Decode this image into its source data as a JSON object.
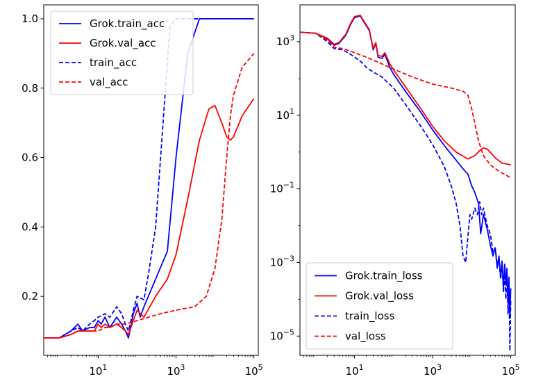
{
  "chart_data": [
    {
      "type": "line",
      "xscale": "log",
      "xlim": [
        0.4,
        130000
      ],
      "ylim": [
        0.03,
        1.04
      ],
      "xticks": [
        {
          "value": 10,
          "label": "10^1"
        },
        {
          "value": 1000,
          "label": "10^3"
        },
        {
          "value": 100000,
          "label": "10^5"
        }
      ],
      "yticks": [
        {
          "value": 0.2,
          "label": "0.2"
        },
        {
          "value": 0.4,
          "label": "0.4"
        },
        {
          "value": 0.6,
          "label": "0.6"
        },
        {
          "value": 0.8,
          "label": "0.8"
        },
        {
          "value": 1.0,
          "label": "1.0"
        }
      ],
      "legend_position": "top-left",
      "series": [
        {
          "name": "Grok.train_acc",
          "color": "#0000ff",
          "style": "solid",
          "points": [
            [
              0.4,
              0.08
            ],
            [
              1,
              0.08
            ],
            [
              2,
              0.1
            ],
            [
              3,
              0.12
            ],
            [
              4,
              0.1
            ],
            [
              6,
              0.11
            ],
            [
              8,
              0.11
            ],
            [
              10,
              0.13
            ],
            [
              12,
              0.12
            ],
            [
              15,
              0.14
            ],
            [
              20,
              0.11
            ],
            [
              30,
              0.14
            ],
            [
              40,
              0.12
            ],
            [
              50,
              0.1
            ],
            [
              60,
              0.08
            ],
            [
              80,
              0.15
            ],
            [
              100,
              0.18
            ],
            [
              120,
              0.14
            ],
            [
              150,
              0.17
            ],
            [
              300,
              0.25
            ],
            [
              600,
              0.33
            ],
            [
              1000,
              0.6
            ],
            [
              2000,
              0.9
            ],
            [
              4000,
              1.0
            ],
            [
              8000,
              1.0
            ],
            [
              100000,
              1.0
            ]
          ]
        },
        {
          "name": "Grok.val_acc",
          "color": "#ff0000",
          "style": "solid",
          "points": [
            [
              0.4,
              0.08
            ],
            [
              1,
              0.08
            ],
            [
              2,
              0.09
            ],
            [
              3,
              0.1
            ],
            [
              4,
              0.1
            ],
            [
              6,
              0.1
            ],
            [
              8,
              0.1
            ],
            [
              10,
              0.12
            ],
            [
              12,
              0.11
            ],
            [
              15,
              0.12
            ],
            [
              20,
              0.11
            ],
            [
              30,
              0.12
            ],
            [
              40,
              0.11
            ],
            [
              50,
              0.1
            ],
            [
              60,
              0.09
            ],
            [
              80,
              0.13
            ],
            [
              100,
              0.16
            ],
            [
              150,
              0.14
            ],
            [
              300,
              0.2
            ],
            [
              600,
              0.25
            ],
            [
              1000,
              0.32
            ],
            [
              2000,
              0.48
            ],
            [
              4000,
              0.65
            ],
            [
              7000,
              0.74
            ],
            [
              10000,
              0.75
            ],
            [
              15000,
              0.7
            ],
            [
              20000,
              0.66
            ],
            [
              25000,
              0.65
            ],
            [
              30000,
              0.66
            ],
            [
              50000,
              0.72
            ],
            [
              100000,
              0.77
            ]
          ]
        },
        {
          "name": "train_acc",
          "color": "#0000ff",
          "style": "dashed",
          "points": [
            [
              0.4,
              0.08
            ],
            [
              1,
              0.08
            ],
            [
              2,
              0.1
            ],
            [
              3,
              0.11
            ],
            [
              4,
              0.1
            ],
            [
              6,
              0.12
            ],
            [
              8,
              0.13
            ],
            [
              10,
              0.14
            ],
            [
              15,
              0.15
            ],
            [
              20,
              0.14
            ],
            [
              30,
              0.17
            ],
            [
              40,
              0.15
            ],
            [
              50,
              0.12
            ],
            [
              60,
              0.1
            ],
            [
              80,
              0.16
            ],
            [
              100,
              0.2
            ],
            [
              150,
              0.19
            ],
            [
              200,
              0.27
            ],
            [
              300,
              0.4
            ],
            [
              500,
              0.75
            ],
            [
              700,
              0.98
            ],
            [
              1000,
              1.0
            ],
            [
              100000,
              1.0
            ]
          ]
        },
        {
          "name": "val_acc",
          "color": "#ff0000",
          "style": "dashed",
          "points": [
            [
              0.4,
              0.08
            ],
            [
              1,
              0.08
            ],
            [
              2,
              0.09
            ],
            [
              3,
              0.1
            ],
            [
              5,
              0.1
            ],
            [
              8,
              0.1
            ],
            [
              10,
              0.1
            ],
            [
              15,
              0.11
            ],
            [
              20,
              0.11
            ],
            [
              30,
              0.12
            ],
            [
              50,
              0.12
            ],
            [
              100,
              0.13
            ],
            [
              200,
              0.14
            ],
            [
              400,
              0.15
            ],
            [
              1000,
              0.16
            ],
            [
              3000,
              0.17
            ],
            [
              6000,
              0.2
            ],
            [
              10000,
              0.28
            ],
            [
              15000,
              0.42
            ],
            [
              20000,
              0.6
            ],
            [
              25000,
              0.72
            ],
            [
              30000,
              0.78
            ],
            [
              50000,
              0.86
            ],
            [
              100000,
              0.9
            ]
          ]
        }
      ]
    },
    {
      "type": "line",
      "xscale": "log",
      "yscale": "log",
      "xlim": [
        0.4,
        130000
      ],
      "ylim": [
        3e-06,
        10000
      ],
      "xticks": [
        {
          "value": 10,
          "label": "10^1"
        },
        {
          "value": 1000,
          "label": "10^3"
        },
        {
          "value": 100000,
          "label": "10^5"
        }
      ],
      "yticks": [
        {
          "value": 1000,
          "label": "10^3"
        },
        {
          "value": 10,
          "label": "10^1"
        },
        {
          "value": 0.1,
          "label": "10^−1"
        },
        {
          "value": 0.001,
          "label": "10^−3"
        },
        {
          "value": 1e-05,
          "label": "10^−5"
        }
      ],
      "legend_position": "bottom-left",
      "series": [
        {
          "name": "Grok.train_loss",
          "color": "#0000ff",
          "style": "solid",
          "points": [
            [
              0.4,
              1800
            ],
            [
              1,
              1700
            ],
            [
              2,
              1200
            ],
            [
              3,
              800
            ],
            [
              4,
              900
            ],
            [
              6,
              1500
            ],
            [
              8,
              3000
            ],
            [
              10,
              4500
            ],
            [
              14,
              5000
            ],
            [
              18,
              3200
            ],
            [
              24,
              2000
            ],
            [
              30,
              600
            ],
            [
              35,
              900
            ],
            [
              40,
              380
            ],
            [
              50,
              350
            ],
            [
              60,
              450
            ],
            [
              80,
              200
            ],
            [
              100,
              130
            ],
            [
              200,
              45
            ],
            [
              500,
              12
            ],
            [
              1000,
              4
            ],
            [
              2000,
              1.5
            ],
            [
              4000,
              0.6
            ],
            [
              6000,
              0.35
            ],
            [
              8000,
              0.25
            ],
            [
              10000,
              0.12
            ],
            [
              12000,
              0.08
            ],
            [
              15000,
              0.04
            ],
            [
              17000,
              0.006
            ],
            [
              20000,
              0.02
            ],
            [
              25000,
              0.008
            ],
            [
              30000,
              0.003
            ],
            [
              35000,
              0.0015
            ],
            [
              40000,
              0.0025
            ],
            [
              45000,
              0.0007
            ],
            [
              50000,
              0.0015
            ],
            [
              55000,
              0.0004
            ],
            [
              60000,
              0.0011
            ],
            [
              65000,
              0.0002
            ],
            [
              70000,
              0.0009
            ],
            [
              75000,
              0.00025
            ],
            [
              80000,
              0.0007
            ],
            [
              85000,
              8e-05
            ],
            [
              90000,
              0.0004
            ],
            [
              95000,
              3e-05
            ],
            [
              100000,
              0.0002
            ]
          ]
        },
        {
          "name": "Grok.val_loss",
          "color": "#ff0000",
          "style": "solid",
          "points": [
            [
              0.4,
              1800
            ],
            [
              1,
              1700
            ],
            [
              2,
              1250
            ],
            [
              3,
              850
            ],
            [
              4,
              950
            ],
            [
              6,
              1600
            ],
            [
              8,
              3200
            ],
            [
              10,
              4800
            ],
            [
              14,
              5200
            ],
            [
              18,
              3400
            ],
            [
              24,
              2100
            ],
            [
              30,
              650
            ],
            [
              35,
              950
            ],
            [
              40,
              420
            ],
            [
              50,
              400
            ],
            [
              60,
              500
            ],
            [
              80,
              250
            ],
            [
              100,
              170
            ],
            [
              200,
              60
            ],
            [
              500,
              15
            ],
            [
              1000,
              5
            ],
            [
              2000,
              2
            ],
            [
              4000,
              1
            ],
            [
              8000,
              0.65
            ],
            [
              12000,
              0.8
            ],
            [
              16000,
              1.1
            ],
            [
              20000,
              1.3
            ],
            [
              25000,
              1.2
            ],
            [
              40000,
              0.7
            ],
            [
              60000,
              0.5
            ],
            [
              100000,
              0.45
            ]
          ]
        },
        {
          "name": "train_loss",
          "color": "#0000ff",
          "style": "dashed",
          "points": [
            [
              0.4,
              1800
            ],
            [
              1,
              1700
            ],
            [
              2,
              1000
            ],
            [
              3,
              650
            ],
            [
              5,
              600
            ],
            [
              8,
              450
            ],
            [
              10,
              380
            ],
            [
              15,
              280
            ],
            [
              20,
              200
            ],
            [
              30,
              150
            ],
            [
              50,
              110
            ],
            [
              100,
              55
            ],
            [
              200,
              20
            ],
            [
              500,
              5
            ],
            [
              1000,
              1.6
            ],
            [
              2000,
              0.4
            ],
            [
              3000,
              0.12
            ],
            [
              4000,
              0.04
            ],
            [
              5000,
              0.01
            ],
            [
              6000,
              0.0015
            ],
            [
              7000,
              0.001
            ],
            [
              8000,
              0.005
            ],
            [
              9000,
              0.02
            ],
            [
              10000,
              0.015
            ],
            [
              12000,
              0.03
            ],
            [
              14000,
              0.02
            ],
            [
              16000,
              0.045
            ],
            [
              18000,
              0.02
            ],
            [
              20000,
              0.03
            ],
            [
              25000,
              0.01
            ],
            [
              30000,
              0.006
            ],
            [
              35000,
              0.002
            ],
            [
              40000,
              0.0025
            ],
            [
              45000,
              0.0009
            ],
            [
              50000,
              0.0012
            ],
            [
              55000,
              0.00035
            ],
            [
              60000,
              0.0009
            ],
            [
              65000,
              0.00015
            ],
            [
              70000,
              0.0006
            ],
            [
              75000,
              0.0001
            ],
            [
              80000,
              0.0005
            ],
            [
              85000,
              4e-05
            ],
            [
              90000,
              0.00025
            ],
            [
              95000,
              4e-06
            ],
            [
              100000,
              0.0001
            ]
          ]
        },
        {
          "name": "val_loss",
          "color": "#ff0000",
          "style": "dashed",
          "points": [
            [
              0.4,
              1800
            ],
            [
              1,
              1700
            ],
            [
              2,
              1100
            ],
            [
              3,
              700
            ],
            [
              5,
              650
            ],
            [
              8,
              550
            ],
            [
              10,
              500
            ],
            [
              20,
              380
            ],
            [
              50,
              250
            ],
            [
              100,
              180
            ],
            [
              300,
              110
            ],
            [
              1000,
              70
            ],
            [
              3000,
              55
            ],
            [
              6000,
              45
            ],
            [
              8000,
              35
            ],
            [
              10000,
              15
            ],
            [
              15000,
              2
            ],
            [
              20000,
              0.8
            ],
            [
              30000,
              0.45
            ],
            [
              50000,
              0.3
            ],
            [
              100000,
              0.2
            ]
          ]
        }
      ]
    }
  ]
}
